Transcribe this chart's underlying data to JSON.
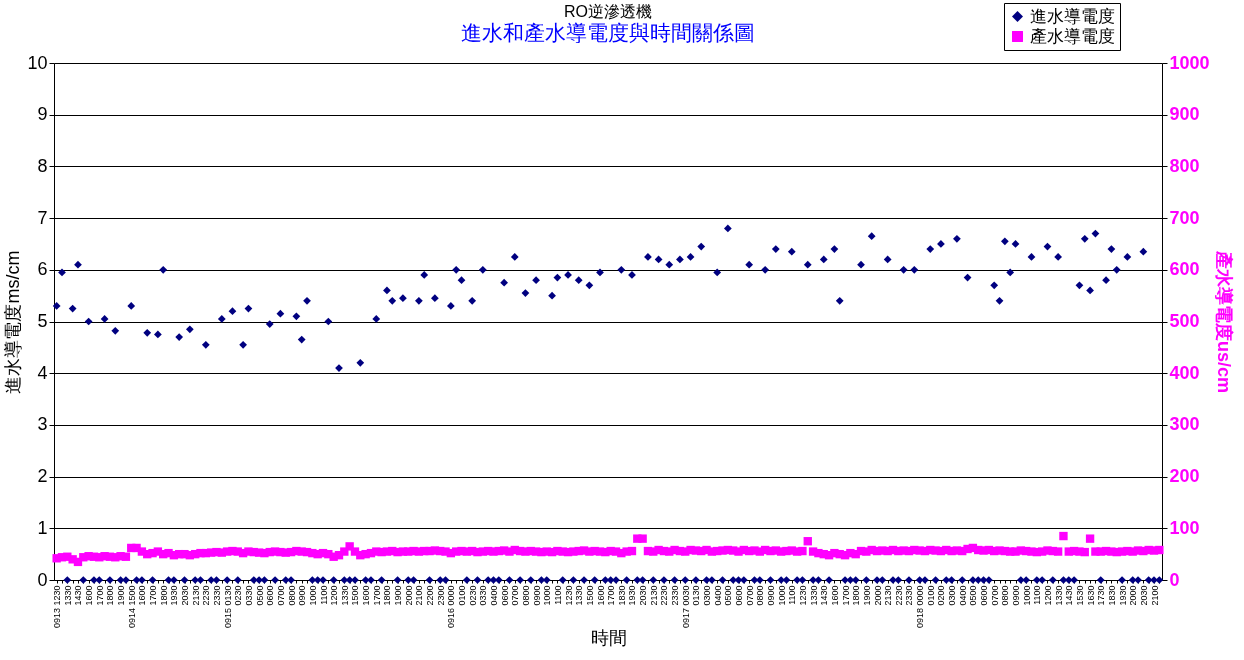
{
  "chart_data": {
    "type": "scatter",
    "title": "RO逆滲透機",
    "subtitle": "進水和產水導電度與時間關係圖",
    "xlabel": "時間",
    "ylabel": "進水導電度ms/cm",
    "y2label": "產水導電度us/cm",
    "categories": [
      "0913 1230",
      null,
      "1330",
      null,
      "1430",
      null,
      "1600",
      null,
      "1700",
      null,
      "1800",
      null,
      "1900",
      null,
      "0914 1500",
      null,
      "1600",
      null,
      "1700",
      null,
      "1800",
      null,
      "1930",
      null,
      "2030",
      null,
      "2130",
      null,
      "2230",
      null,
      "2330",
      null,
      "0915 0130",
      null,
      "0230",
      null,
      "0330",
      null,
      "0500",
      null,
      "0600",
      null,
      "0700",
      null,
      "0800",
      null,
      "0900",
      null,
      "1000",
      null,
      "1100",
      null,
      "1200",
      null,
      "1330",
      null,
      "1500",
      null,
      "1600",
      null,
      "1700",
      null,
      "1800",
      null,
      "1900",
      null,
      "2000",
      null,
      "2100",
      null,
      "2200",
      null,
      "2300",
      null,
      "0916 0000",
      null,
      "0100",
      null,
      "0230",
      null,
      "0330",
      null,
      "0400",
      null,
      "0600",
      null,
      "0700",
      null,
      "0800",
      null,
      "0900",
      null,
      "1000",
      null,
      "1100",
      null,
      "1230",
      null,
      "1330",
      null,
      "1500",
      null,
      "1600",
      null,
      "1700",
      null,
      "1830",
      null,
      "1930",
      null,
      "2030",
      null,
      "2130",
      null,
      "2230",
      null,
      "2330",
      null,
      "0917 0030",
      null,
      "0130",
      null,
      "0300",
      null,
      "0400",
      null,
      "0500",
      null,
      "0600",
      null,
      "0700",
      null,
      "0800",
      null,
      "0900",
      null,
      "1000",
      null,
      "1100",
      null,
      "1230",
      null,
      "1330",
      null,
      "1430",
      null,
      "1600",
      null,
      "1700",
      null,
      "1800",
      null,
      "1900",
      null,
      "2000",
      null,
      "2130",
      null,
      "2230",
      null,
      "2330",
      null,
      "0918 0000",
      null,
      "0100",
      null,
      "0200",
      null,
      "0300",
      null,
      "0400",
      null,
      "0500",
      null,
      "0600",
      null,
      "0700",
      null,
      "0800",
      null,
      "0900",
      null,
      "1000",
      null,
      "1100",
      null,
      "1200",
      null,
      "1330",
      null,
      "1430",
      null,
      "1530",
      null,
      "1630",
      null,
      "1730",
      null,
      "1830",
      null,
      "1930",
      null,
      "2000",
      null,
      "2030",
      null,
      "2100",
      null
    ],
    "series": [
      {
        "name": "進水導電度",
        "color": "#000080",
        "marker": "diamond",
        "values": [
          5.3,
          5.95,
          0,
          5.25,
          6.1,
          0,
          5.0,
          0,
          0,
          5.05,
          0,
          4.82,
          0,
          0,
          5.3,
          0,
          0,
          4.78,
          0,
          4.75,
          6.0,
          0,
          0,
          4.7,
          0,
          4.85,
          0,
          0,
          4.55,
          0,
          0,
          5.05,
          0,
          5.2,
          0,
          4.55,
          5.25,
          0,
          0,
          0,
          4.95,
          0,
          5.15,
          0,
          0,
          5.1,
          4.65,
          5.4,
          0,
          0,
          0,
          5.0,
          0,
          4.1,
          0,
          0,
          0,
          4.2,
          0,
          0,
          5.05,
          0,
          5.6,
          5.4,
          0,
          5.45,
          0,
          0,
          5.4,
          5.9,
          0,
          5.45,
          0,
          0,
          5.3,
          6.0,
          5.8,
          0,
          5.4,
          0,
          6.0,
          0,
          0,
          0,
          5.75,
          0,
          6.25,
          0,
          5.55,
          0,
          5.8,
          0,
          0,
          5.5,
          5.85,
          0,
          5.9,
          0,
          5.8,
          0,
          5.7,
          0,
          5.95,
          0,
          0,
          0,
          6.0,
          0,
          5.9,
          0,
          0,
          6.25,
          0,
          6.2,
          0,
          6.1,
          0,
          6.2,
          0,
          6.25,
          0,
          6.45,
          0,
          0,
          5.95,
          0,
          6.8,
          0,
          0,
          0,
          6.1,
          0,
          0,
          6.0,
          0,
          6.4,
          0,
          0,
          6.35,
          0,
          0,
          6.1,
          0,
          0,
          6.2,
          0,
          6.4,
          5.4,
          0,
          0,
          0,
          6.1,
          0,
          6.65,
          0,
          0,
          6.2,
          0,
          0,
          6.0,
          0,
          6.0,
          0,
          0,
          6.4,
          0,
          6.5,
          0,
          0,
          6.6,
          0,
          5.85,
          0,
          0,
          0,
          0,
          5.7,
          5.4,
          6.55,
          5.95,
          6.5,
          0,
          0,
          6.25,
          0,
          0,
          6.45,
          0,
          6.25,
          0,
          0,
          0,
          5.7,
          6.6,
          5.6,
          6.7,
          0,
          5.8,
          6.4,
          6.0,
          0,
          6.25,
          0,
          0,
          6.35,
          0,
          0,
          0
        ]
      },
      {
        "name": "產水導電度",
        "color": "#ff00ff",
        "marker": "square",
        "axis": "y2",
        "values": [
          42,
          44,
          45,
          40,
          35,
          44,
          46,
          45,
          44,
          46,
          45,
          44,
          46,
          45,
          62,
          62,
          55,
          50,
          52,
          55,
          50,
          52,
          48,
          50,
          50,
          48,
          50,
          52,
          52,
          53,
          54,
          53,
          55,
          56,
          55,
          52,
          55,
          54,
          53,
          52,
          54,
          55,
          54,
          53,
          54,
          56,
          55,
          54,
          52,
          50,
          52,
          50,
          45,
          48,
          55,
          65,
          55,
          48,
          50,
          52,
          55,
          54,
          55,
          56,
          54,
          55,
          55,
          56,
          55,
          56,
          56,
          57,
          56,
          55,
          52,
          55,
          56,
          55,
          56,
          54,
          55,
          56,
          55,
          56,
          57,
          55,
          58,
          56,
          55,
          56,
          55,
          54,
          55,
          54,
          56,
          55,
          54,
          55,
          56,
          57,
          55,
          56,
          55,
          54,
          56,
          55,
          52,
          55,
          56,
          80,
          80,
          56,
          55,
          58,
          56,
          55,
          58,
          56,
          55,
          58,
          57,
          56,
          58,
          55,
          56,
          57,
          58,
          57,
          55,
          58,
          56,
          57,
          55,
          58,
          56,
          57,
          55,
          56,
          57,
          55,
          56,
          75,
          55,
          52,
          50,
          48,
          52,
          50,
          48,
          52,
          50,
          56,
          55,
          58,
          56,
          57,
          56,
          58,
          56,
          57,
          56,
          58,
          57,
          56,
          58,
          57,
          56,
          58,
          56,
          57,
          56,
          60,
          62,
          58,
          57,
          58,
          56,
          57,
          56,
          55,
          55,
          57,
          56,
          55,
          54,
          55,
          57,
          56,
          55,
          85,
          55,
          56,
          55,
          54,
          80,
          55,
          55,
          56,
          55,
          54,
          55,
          56,
          55,
          57,
          56,
          58,
          57,
          58
        ]
      }
    ],
    "ylim": [
      0,
      10
    ],
    "yticks": [
      0,
      1,
      2,
      3,
      4,
      5,
      6,
      7,
      8,
      9,
      10
    ],
    "y2lim": [
      0,
      1000
    ],
    "y2ticks": [
      0,
      100,
      200,
      300,
      400,
      500,
      600,
      700,
      800,
      900,
      1000
    ],
    "grid": "y",
    "legend": "top right"
  }
}
